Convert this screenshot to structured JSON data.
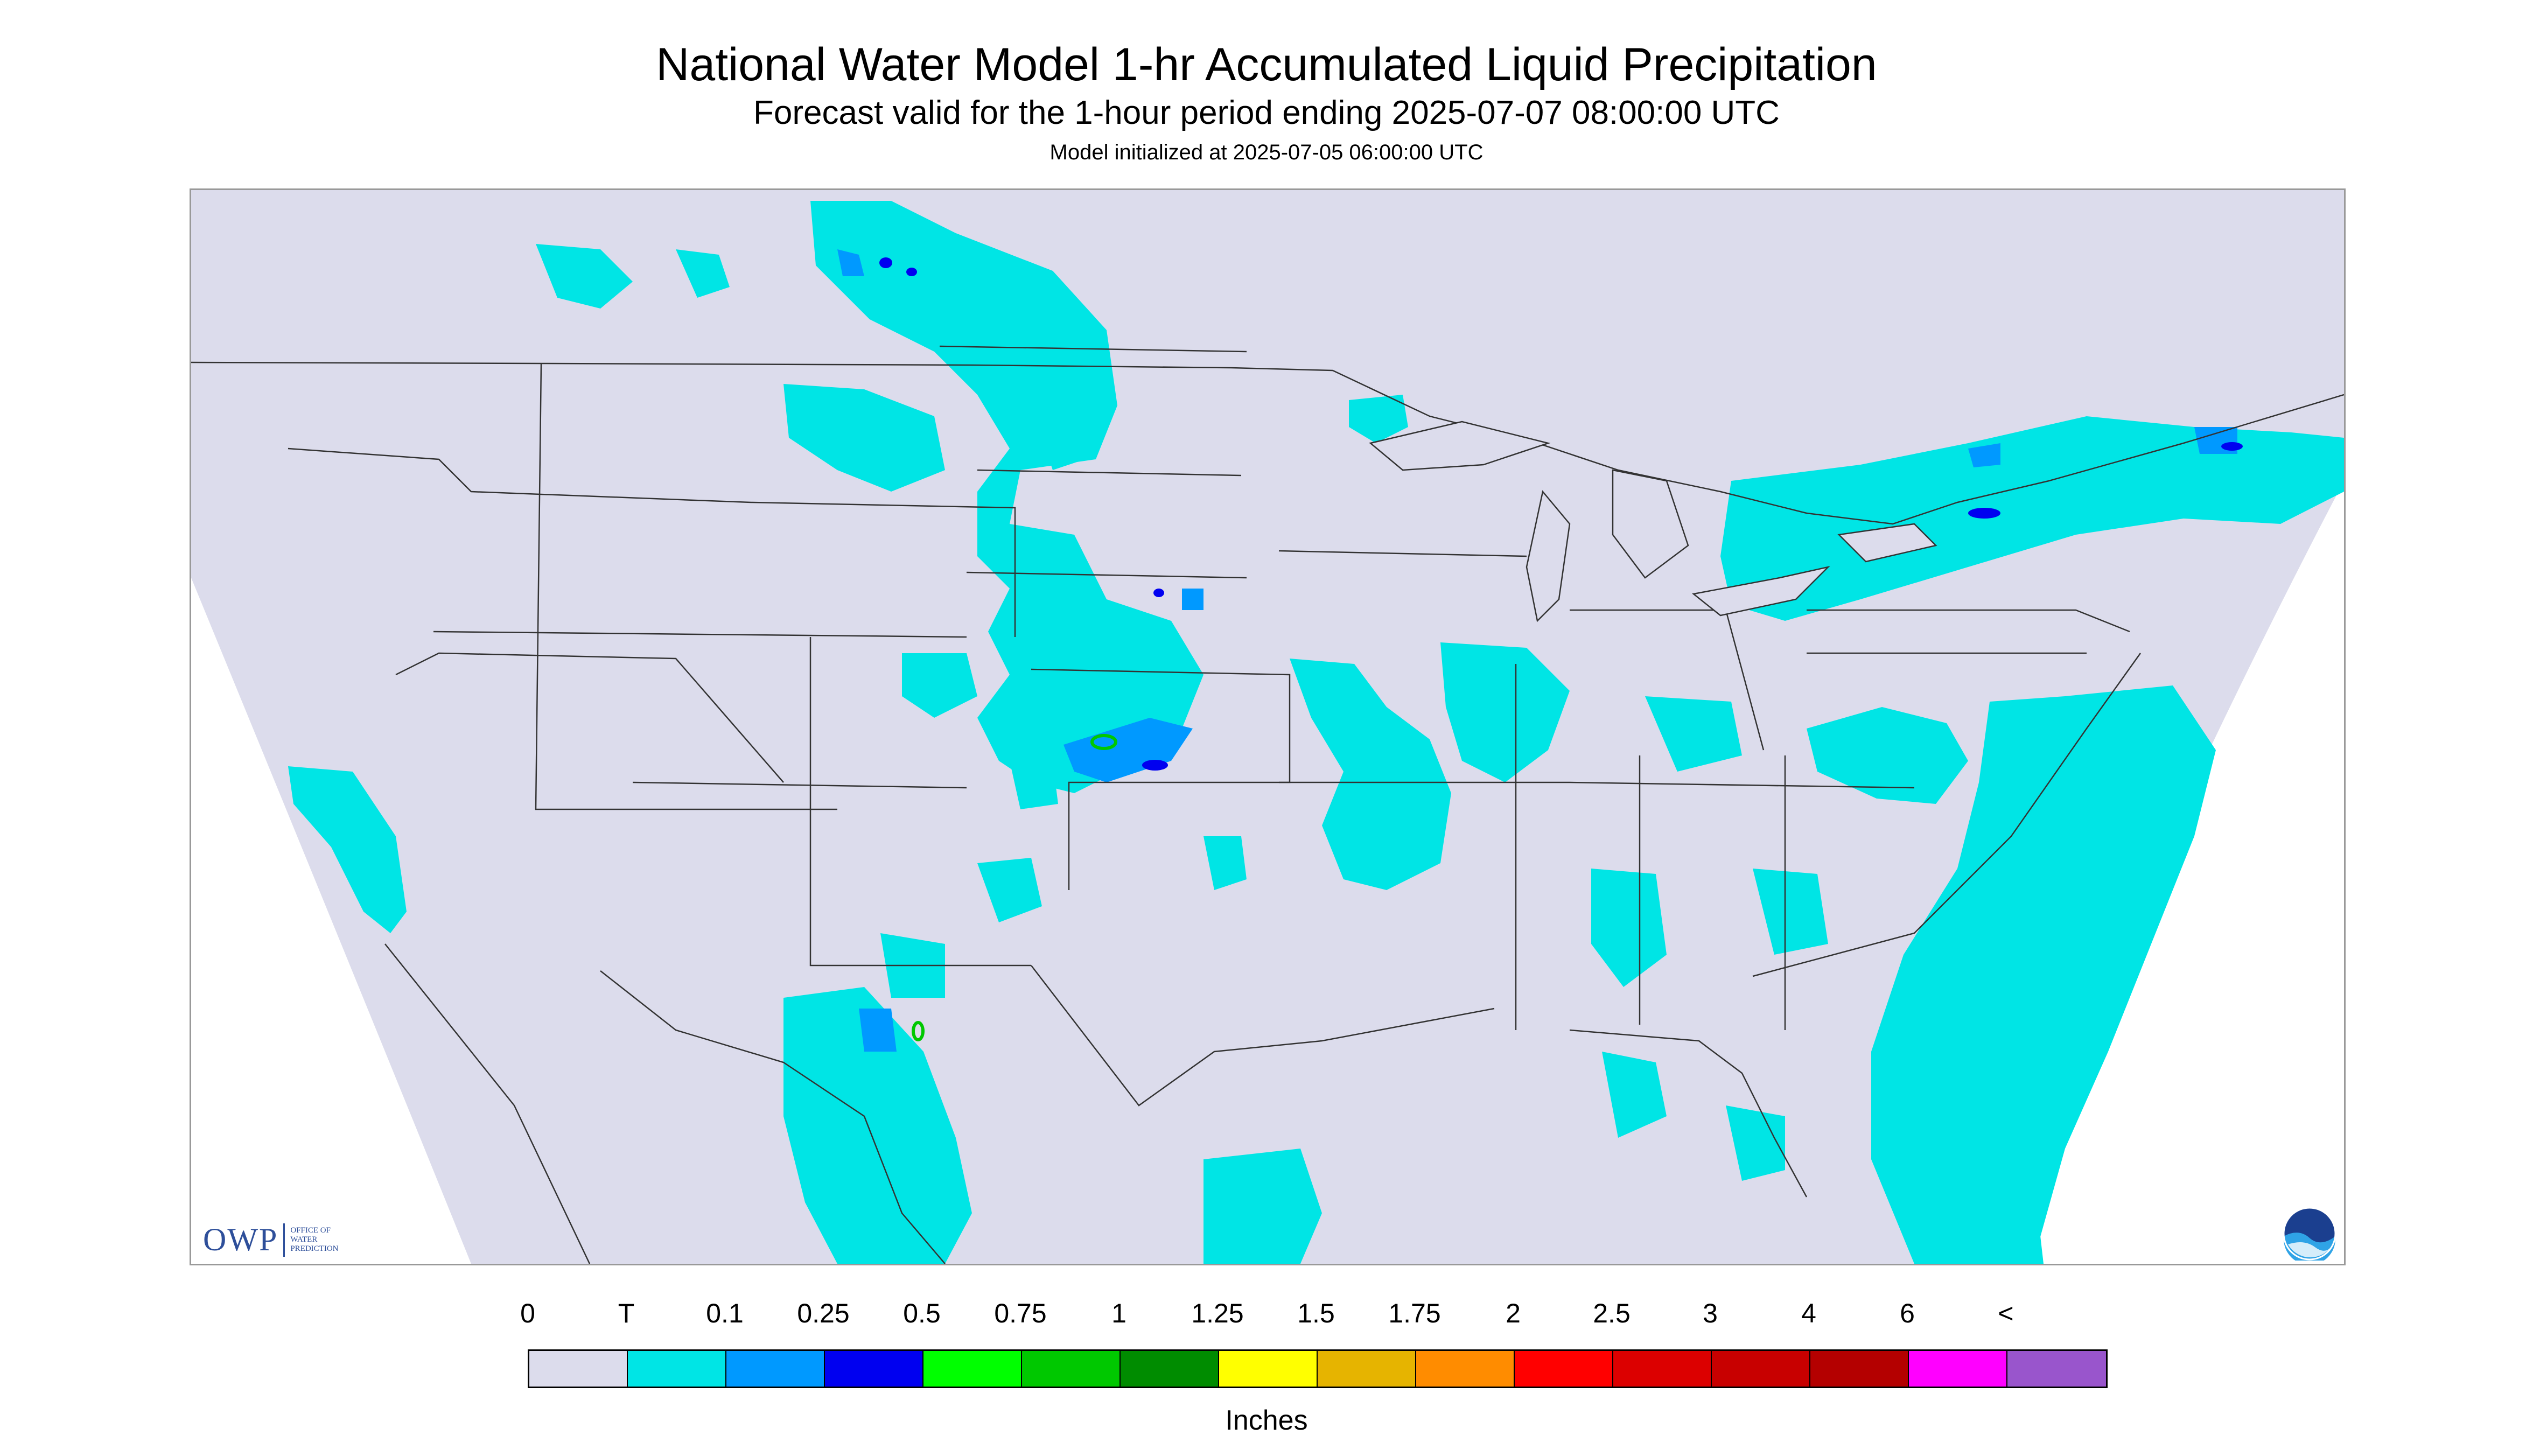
{
  "title": "National Water Model 1-hr Accumulated Liquid Precipitation",
  "subtitle": "Forecast valid for the 1-hour period ending 2025-07-07 08:00:00 UTC",
  "model_init": "Model initialized at 2025-07-05 06:00:00 UTC",
  "logo": {
    "owp_mark": "OWP",
    "owp_text_lines": [
      "OFFICE OF",
      "WATER",
      "PREDICTION"
    ],
    "noaa_icon": "noaa-logo-icon"
  },
  "colors": {
    "map_background": "#dcdcec",
    "precip_trace": "#00e5e5",
    "precip_0_1": "#0099ff",
    "precip_0_25": "#0000f0",
    "precip_0_5": "#00ff00",
    "border_lines": "#333333"
  },
  "legend": {
    "labels": [
      "0",
      "T",
      "0.1",
      "0.25",
      "0.5",
      "0.75",
      "1",
      "1.25",
      "1.5",
      "1.75",
      "2",
      "2.5",
      "3",
      "4",
      "6",
      "<"
    ],
    "colors": [
      "#dcdcec",
      "#00e5e5",
      "#0099ff",
      "#0000f0",
      "#00ff00",
      "#00c800",
      "#008c00",
      "#ffff00",
      "#e6b400",
      "#ff8c00",
      "#ff0000",
      "#dc0000",
      "#c80000",
      "#b40000",
      "#ff00ff",
      "#9955cc"
    ],
    "units": "Inches"
  }
}
